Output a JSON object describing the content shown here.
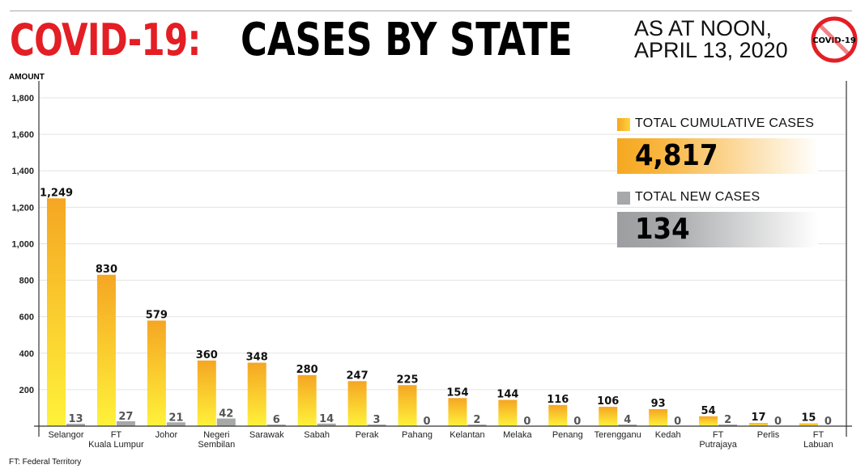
{
  "header": {
    "title_part1": "COVID-19:",
    "title_part2": "CASES BY STATE",
    "as_at_line1": "AS AT NOON,",
    "as_at_line2": "APRIL 13, 2020",
    "badge_text": "COVID-19"
  },
  "footnote": "FT: Federal Territory",
  "summary": {
    "cumulative_label": "TOTAL CUMULATIVE CASES",
    "cumulative_value": "4,817",
    "new_label": "TOTAL NEW CASES",
    "new_value": "134"
  },
  "colors": {
    "title_red": "#e31e24",
    "cumulative_top": "#f5a623",
    "cumulative_bottom": "#fff23a",
    "new_cases": "#a7a8aa"
  },
  "chart_data": {
    "type": "bar",
    "title": "COVID-19: CASES BY STATE",
    "subtitle": "AS AT NOON, APRIL 13, 2020",
    "ylabel": "AMOUNT",
    "xlabel": "",
    "ylim": [
      0,
      1800
    ],
    "yticks": [
      200,
      400,
      600,
      800,
      1000,
      1200,
      1400,
      1600,
      1800
    ],
    "ytick_labels": [
      "200",
      "400",
      "600",
      "800",
      "1,000",
      "1,200",
      "1,400",
      "1,600",
      "1,800"
    ],
    "grid": true,
    "legend_position": "top-right",
    "categories": [
      [
        "Selangor"
      ],
      [
        "FT",
        "Kuala Lumpur"
      ],
      [
        "Johor"
      ],
      [
        "Negeri",
        "Sembilan"
      ],
      [
        "Sarawak"
      ],
      [
        "Sabah"
      ],
      [
        "Perak"
      ],
      [
        "Pahang"
      ],
      [
        "Kelantan"
      ],
      [
        "Melaka"
      ],
      [
        "Penang"
      ],
      [
        "Terengganu"
      ],
      [
        "Kedah"
      ],
      [
        "FT",
        "Putrajaya"
      ],
      [
        "Perlis"
      ],
      [
        "FT",
        "Labuan"
      ]
    ],
    "series": [
      {
        "name": "TOTAL CUMULATIVE CASES",
        "values": [
          1249,
          830,
          579,
          360,
          348,
          280,
          247,
          225,
          154,
          144,
          116,
          106,
          93,
          54,
          17,
          15
        ],
        "labels": [
          "1,249",
          "830",
          "579",
          "360",
          "348",
          "280",
          "247",
          "225",
          "154",
          "144",
          "116",
          "106",
          "93",
          "54",
          "17",
          "15"
        ]
      },
      {
        "name": "TOTAL NEW CASES",
        "values": [
          13,
          27,
          21,
          42,
          6,
          14,
          3,
          0,
          2,
          0,
          0,
          4,
          0,
          2,
          0,
          0
        ],
        "labels": [
          "13",
          "27",
          "21",
          "42",
          "6",
          "14",
          "3",
          "0",
          "2",
          "0",
          "0",
          "4",
          "0",
          "2",
          "0",
          "0"
        ]
      }
    ]
  }
}
